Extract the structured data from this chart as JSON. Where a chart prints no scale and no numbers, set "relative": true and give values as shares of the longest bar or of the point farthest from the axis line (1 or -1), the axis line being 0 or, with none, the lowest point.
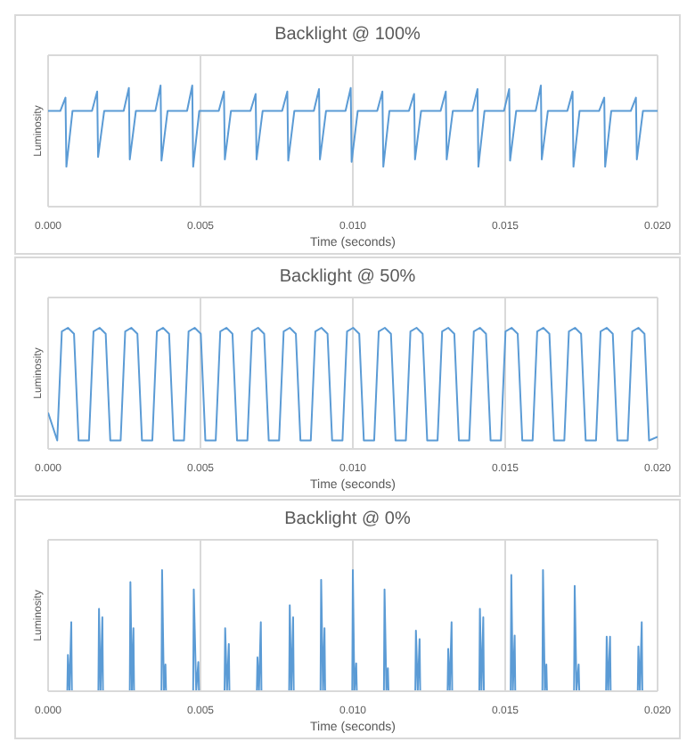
{
  "chart_data": [
    {
      "type": "line",
      "title": "Backlight @ 100%",
      "xlabel": "Time (seconds)",
      "ylabel": "Luminosity",
      "relative": true,
      "grid": true,
      "marker": "none",
      "xlim": [
        0,
        0.02
      ],
      "xticks": [
        {
          "value": 0,
          "label": "0.000"
        },
        {
          "value": 0.005,
          "label": "0.005"
        },
        {
          "value": 0.01,
          "label": "0.010"
        },
        {
          "value": 0.015,
          "label": "0.015"
        },
        {
          "value": 0.02,
          "label": "0.020"
        }
      ],
      "series": [
        {
          "color": "#5b9bd5",
          "x": [
            0,
            0.0004,
            0.00057,
            0.0006,
            0.0008,
            0.00144,
            0.00161,
            0.00164,
            0.00184,
            0.00248,
            0.00265,
            0.00268,
            0.00288,
            0.00352,
            0.00369,
            0.00372,
            0.00392,
            0.00456,
            0.00473,
            0.00476,
            0.00496,
            0.0056,
            0.00577,
            0.0058,
            0.006,
            0.00664,
            0.00681,
            0.00684,
            0.00704,
            0.00768,
            0.00785,
            0.00788,
            0.00808,
            0.00872,
            0.00889,
            0.00892,
            0.00912,
            0.00976,
            0.00993,
            0.00996,
            0.01016,
            0.0108,
            0.01097,
            0.011,
            0.0112,
            0.01184,
            0.01201,
            0.01204,
            0.01224,
            0.01288,
            0.01305,
            0.01308,
            0.01328,
            0.01392,
            0.01409,
            0.01412,
            0.01432,
            0.01496,
            0.01513,
            0.01516,
            0.01536,
            0.016,
            0.01617,
            0.0162,
            0.0164,
            0.01704,
            0.01721,
            0.01724,
            0.01744,
            0.01808,
            0.01825,
            0.01828,
            0.01848,
            0.01912,
            0.01929,
            0.01932,
            0.01952,
            0.02
          ],
          "values": [
            0.79,
            0.79,
            0.9,
            0.33,
            0.79,
            0.79,
            0.95,
            0.41,
            0.79,
            0.79,
            0.98,
            0.39,
            0.79,
            0.79,
            1.0,
            0.38,
            0.79,
            0.79,
            1.0,
            0.33,
            0.79,
            0.79,
            0.95,
            0.39,
            0.79,
            0.79,
            0.93,
            0.39,
            0.79,
            0.79,
            0.95,
            0.38,
            0.79,
            0.79,
            0.97,
            0.39,
            0.79,
            0.79,
            0.98,
            0.37,
            0.79,
            0.79,
            0.95,
            0.33,
            0.79,
            0.79,
            0.93,
            0.39,
            0.79,
            0.79,
            0.95,
            0.39,
            0.79,
            0.79,
            0.97,
            0.33,
            0.79,
            0.79,
            0.97,
            0.38,
            0.79,
            0.79,
            1.0,
            0.39,
            0.79,
            0.79,
            0.95,
            0.33,
            0.79,
            0.79,
            0.9,
            0.33,
            0.79,
            0.79,
            0.9,
            0.39,
            0.79,
            0.79
          ]
        }
      ]
    },
    {
      "type": "line",
      "title": "Backlight @ 50%",
      "xlabel": "Time (seconds)",
      "ylabel": "Luminosity",
      "relative": true,
      "grid": true,
      "marker": "none",
      "xlim": [
        0,
        0.02
      ],
      "xticks": [
        {
          "value": 0,
          "label": "0.000"
        },
        {
          "value": 0.005,
          "label": "0.005"
        },
        {
          "value": 0.01,
          "label": "0.010"
        },
        {
          "value": 0.015,
          "label": "0.015"
        },
        {
          "value": 0.02,
          "label": "0.020"
        }
      ],
      "series": [
        {
          "color": "#5b9bd5",
          "x": [
            0,
            0.0003,
            0.00045,
            0.00065,
            0.00085,
            0.001,
            0.00134,
            0.00149,
            0.00169,
            0.00189,
            0.00204,
            0.00238,
            0.00253,
            0.00273,
            0.00293,
            0.00308,
            0.00342,
            0.00357,
            0.00377,
            0.00397,
            0.00412,
            0.00446,
            0.00461,
            0.00481,
            0.00501,
            0.00516,
            0.0055,
            0.00565,
            0.00585,
            0.00605,
            0.0062,
            0.00654,
            0.00669,
            0.00689,
            0.00709,
            0.00724,
            0.00758,
            0.00773,
            0.00793,
            0.00813,
            0.00828,
            0.00862,
            0.00877,
            0.00897,
            0.00917,
            0.00932,
            0.00966,
            0.00981,
            0.01001,
            0.01021,
            0.01036,
            0.0107,
            0.01085,
            0.01105,
            0.01125,
            0.0114,
            0.01174,
            0.01189,
            0.01209,
            0.01229,
            0.01244,
            0.01278,
            0.01293,
            0.01313,
            0.01333,
            0.01348,
            0.01382,
            0.01397,
            0.01417,
            0.01437,
            0.01452,
            0.01486,
            0.01501,
            0.01521,
            0.01541,
            0.01556,
            0.0159,
            0.01605,
            0.01625,
            0.01645,
            0.0166,
            0.01694,
            0.01709,
            0.01729,
            0.01749,
            0.01764,
            0.01798,
            0.01813,
            0.01833,
            0.01853,
            0.01868,
            0.01902,
            0.01917,
            0.01937,
            0.01957,
            0.01972,
            0.02
          ],
          "values": [
            0.3,
            0.07,
            0.97,
            1.0,
            0.95,
            0.07,
            0.07,
            0.97,
            1.0,
            0.95,
            0.07,
            0.07,
            0.97,
            1.0,
            0.95,
            0.07,
            0.07,
            0.97,
            1.0,
            0.95,
            0.07,
            0.07,
            0.97,
            1.0,
            0.95,
            0.07,
            0.07,
            0.97,
            1.0,
            0.95,
            0.07,
            0.07,
            0.97,
            1.0,
            0.95,
            0.07,
            0.07,
            0.97,
            1.0,
            0.95,
            0.07,
            0.07,
            0.97,
            1.0,
            0.95,
            0.07,
            0.07,
            0.97,
            1.0,
            0.95,
            0.07,
            0.07,
            0.97,
            1.0,
            0.95,
            0.07,
            0.07,
            0.97,
            1.0,
            0.95,
            0.07,
            0.07,
            0.97,
            1.0,
            0.95,
            0.07,
            0.07,
            0.97,
            1.0,
            0.95,
            0.07,
            0.07,
            0.97,
            1.0,
            0.95,
            0.07,
            0.07,
            0.97,
            1.0,
            0.95,
            0.07,
            0.07,
            0.97,
            1.0,
            0.95,
            0.07,
            0.07,
            0.97,
            1.0,
            0.95,
            0.07,
            0.07,
            0.97,
            1.0,
            0.95,
            0.07,
            0.1
          ]
        }
      ]
    },
    {
      "type": "line",
      "title": "Backlight @ 0%",
      "xlabel": "Time (seconds)",
      "ylabel": "Luminosity",
      "relative": true,
      "grid": true,
      "marker": "none",
      "xlim": [
        0,
        0.02
      ],
      "xticks": [
        {
          "value": 0,
          "label": "0.000"
        },
        {
          "value": 0.005,
          "label": "0.005"
        },
        {
          "value": 0.01,
          "label": "0.010"
        },
        {
          "value": 0.015,
          "label": "0.015"
        },
        {
          "value": 0.02,
          "label": "0.020"
        }
      ],
      "series": [
        {
          "color": "#5b9bd5",
          "x": [
            0,
            0.00063,
            0.00065,
            0.0007,
            0.00076,
            0.00078,
            0.00165,
            0.00167,
            0.00172,
            0.00178,
            0.0018,
            0.00268,
            0.0027,
            0.00275,
            0.0028,
            0.00282,
            0.00372,
            0.00374,
            0.0038,
            0.00385,
            0.00387,
            0.00476,
            0.00478,
            0.00486,
            0.00493,
            0.00495,
            0.00579,
            0.00581,
            0.00587,
            0.00593,
            0.00595,
            0.00685,
            0.00687,
            0.00692,
            0.00698,
            0.007,
            0.00791,
            0.00793,
            0.00798,
            0.00804,
            0.00806,
            0.00894,
            0.00896,
            0.00902,
            0.00907,
            0.00909,
            0.00998,
            0.01,
            0.01005,
            0.01011,
            0.01013,
            0.01102,
            0.01104,
            0.0111,
            0.01115,
            0.01117,
            0.01205,
            0.01207,
            0.01213,
            0.01219,
            0.01221,
            0.01311,
            0.01313,
            0.01318,
            0.01324,
            0.01326,
            0.01415,
            0.01417,
            0.01422,
            0.01428,
            0.0143,
            0.01518,
            0.0152,
            0.01525,
            0.01531,
            0.01533,
            0.01622,
            0.01624,
            0.0163,
            0.01635,
            0.01637,
            0.01726,
            0.01728,
            0.01734,
            0.01741,
            0.01743,
            0.01831,
            0.01833,
            0.01838,
            0.01844,
            0.01846,
            0.01935,
            0.01937,
            0.01942,
            0.01948,
            0.0195,
            0.02
          ],
          "values": [
            0,
            0,
            0.3,
            0,
            0.57,
            0,
            0,
            0.68,
            0,
            0.61,
            0,
            0,
            0.9,
            0,
            0.52,
            0,
            0,
            1.0,
            0,
            0.22,
            0,
            0,
            0.84,
            0,
            0.24,
            0,
            0,
            0.52,
            0,
            0.39,
            0,
            0,
            0.28,
            0,
            0.57,
            0,
            0,
            0.71,
            0,
            0.61,
            0,
            0,
            0.92,
            0,
            0.52,
            0,
            0,
            1.0,
            0,
            0.23,
            0,
            0,
            0.84,
            0,
            0.19,
            0,
            0,
            0.5,
            0,
            0.43,
            0,
            0,
            0.35,
            0,
            0.57,
            0,
            0,
            0.68,
            0,
            0.61,
            0,
            0,
            0.96,
            0,
            0.46,
            0,
            0,
            1.0,
            0,
            0.22,
            0,
            0,
            0.87,
            0,
            0.22,
            0,
            0,
            0.45,
            0,
            0.45,
            0,
            0,
            0.37,
            0,
            0.57,
            0,
            0
          ]
        }
      ]
    }
  ]
}
